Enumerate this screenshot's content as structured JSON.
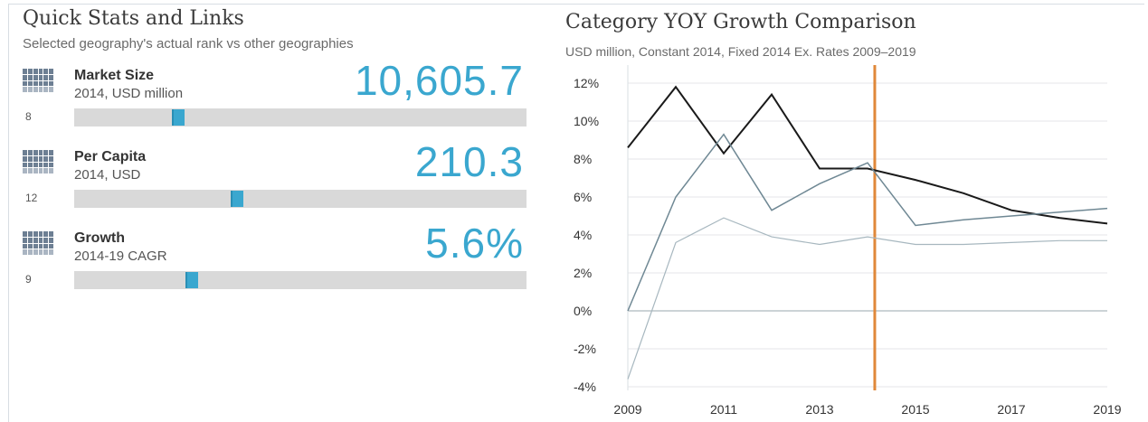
{
  "left_panel": {
    "title": "Quick Stats and Links",
    "subtitle": "Selected geography's actual rank vs other geographies",
    "stats": [
      {
        "icon": "grid-chart-icon",
        "label": "Market Size",
        "sub": "2014, USD million",
        "rank": "8",
        "value": "10,605.7",
        "rank_position": 0.23
      },
      {
        "icon": "grid-chart-icon",
        "label": "Per Capita",
        "sub": "2014, USD",
        "rank": "12",
        "value": "210.3",
        "rank_position": 0.36
      },
      {
        "icon": "grid-chart-icon",
        "label": "Growth",
        "sub": "2014-19 CAGR",
        "rank": "9",
        "value": "5.6%",
        "rank_position": 0.26
      }
    ]
  },
  "right_panel": {
    "title": "Category YOY Growth Comparison",
    "subtitle": "USD million, Constant 2014, Fixed 2014 Ex. Rates  2009–2019"
  },
  "chart_data": {
    "type": "line",
    "title": "Category YOY Growth Comparison",
    "subtitle": "USD million, Constant 2014, Fixed 2014 Ex. Rates  2009–2019",
    "x": [
      2009,
      2010,
      2011,
      2012,
      2013,
      2014,
      2015,
      2016,
      2017,
      2018,
      2019
    ],
    "x_ticks": [
      "2009",
      "2011",
      "2013",
      "2015",
      "2017",
      "2019"
    ],
    "y_ticks": [
      "12%",
      "10%",
      "8%",
      "6%",
      "4%",
      "2%",
      "0%",
      "-2%",
      "-4%"
    ],
    "ylim": [
      -4,
      12
    ],
    "xlim": [
      2009,
      2019
    ],
    "highlight_x": 2014.15,
    "highlight_color": "#e0883a",
    "grid": "horizontal",
    "series": [
      {
        "color": "#1a1a1a",
        "width": 2,
        "values": [
          8.6,
          11.8,
          8.3,
          11.4,
          7.5,
          7.5,
          6.9,
          6.2,
          5.3,
          4.9,
          4.6
        ]
      },
      {
        "color": "#6f8894",
        "width": 1.5,
        "values": [
          0.0,
          6.0,
          9.3,
          5.3,
          6.7,
          7.8,
          4.5,
          4.8,
          5.0,
          5.2,
          5.4
        ]
      },
      {
        "color": "#a7b7bf",
        "width": 1.2,
        "values": [
          -3.6,
          3.6,
          4.9,
          3.9,
          3.5,
          3.9,
          3.5,
          3.5,
          3.6,
          3.7,
          3.7
        ]
      }
    ]
  }
}
